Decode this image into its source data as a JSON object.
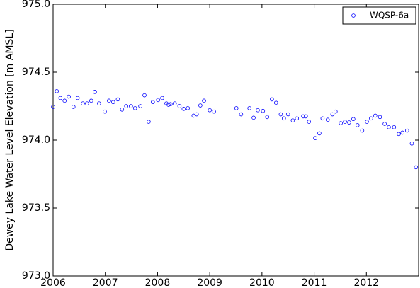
{
  "chart_data": {
    "type": "scatter",
    "ylabel": "Dewey Lake Water Level Elevation [m AMSL]",
    "xlim": [
      2006,
      2013
    ],
    "xticks": [
      2006,
      2007,
      2008,
      2009,
      2010,
      2011,
      2012
    ],
    "ylim": [
      973.0,
      975.0
    ],
    "yticks": [
      {
        "value": 973.0,
        "label": "973.0"
      },
      973.5,
      {
        "value": 974.0,
        "label": "974.0"
      },
      974.5,
      {
        "value": 975.0,
        "label": "975.0"
      }
    ],
    "legend": "upper right",
    "series": [
      {
        "name": "WQSP-6a",
        "color": "#0000ff",
        "x": [
          2006.0,
          2006.07,
          2006.14,
          2006.22,
          2006.3,
          2006.39,
          2006.47,
          2006.57,
          2006.65,
          2006.73,
          2006.8,
          2006.88,
          2006.99,
          2007.07,
          2007.15,
          2007.24,
          2007.32,
          2007.4,
          2007.49,
          2007.57,
          2007.67,
          2007.75,
          2007.83,
          2007.91,
          2008.01,
          2008.09,
          2008.17,
          2008.21,
          2008.25,
          2008.33,
          2008.42,
          2008.5,
          2008.58,
          2008.69,
          2008.75,
          2008.82,
          2008.89,
          2009.0,
          2009.08,
          2009.51,
          2009.6,
          2009.76,
          2009.84,
          2009.92,
          2010.02,
          2010.1,
          2010.19,
          2010.27,
          2010.36,
          2010.42,
          2010.5,
          2010.59,
          2010.67,
          2010.79,
          2010.84,
          2010.9,
          2011.02,
          2011.1,
          2011.16,
          2011.26,
          2011.35,
          2011.41,
          2011.51,
          2011.59,
          2011.67,
          2011.75,
          2011.83,
          2011.92,
          2012.01,
          2012.09,
          2012.17,
          2012.26,
          2012.35,
          2012.43,
          2012.53,
          2012.62,
          2012.69,
          2012.78,
          2012.87,
          2012.95
        ],
        "values": [
          974.245,
          974.36,
          974.31,
          974.29,
          974.32,
          974.245,
          974.31,
          974.27,
          974.27,
          974.29,
          974.355,
          974.27,
          974.21,
          974.29,
          974.28,
          974.3,
          974.225,
          974.25,
          974.25,
          974.235,
          974.25,
          974.33,
          974.135,
          974.28,
          974.295,
          974.31,
          974.27,
          974.26,
          974.265,
          974.27,
          974.25,
          974.23,
          974.235,
          974.18,
          974.19,
          974.255,
          974.29,
          974.22,
          974.21,
          974.235,
          974.19,
          974.235,
          974.165,
          974.22,
          974.215,
          974.17,
          974.3,
          974.275,
          974.19,
          974.16,
          974.19,
          974.145,
          974.16,
          974.175,
          974.175,
          974.135,
          974.015,
          974.05,
          974.16,
          974.15,
          974.19,
          974.21,
          974.125,
          974.135,
          974.13,
          974.155,
          974.11,
          974.07,
          974.135,
          974.16,
          974.18,
          974.17,
          974.12,
          974.095,
          974.095,
          974.045,
          974.055,
          974.07,
          973.975,
          973.8
        ]
      }
    ]
  }
}
